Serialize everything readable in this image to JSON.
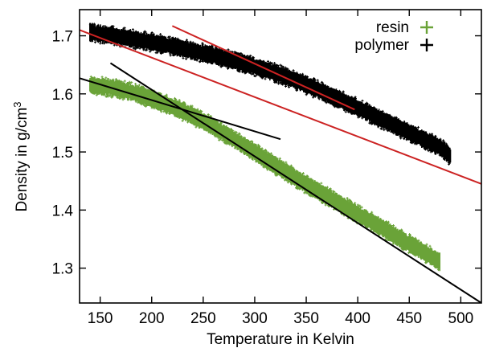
{
  "chart_data": {
    "type": "scatter",
    "title": "",
    "xlabel": "Temperature in Kelvin",
    "ylabel": "Density in g/cm",
    "ylabel_superscript": "3",
    "xlim": [
      130,
      520
    ],
    "ylim": [
      1.24,
      1.745
    ],
    "xticks": [
      150,
      200,
      250,
      300,
      350,
      400,
      450,
      500
    ],
    "yticks": [
      1.3,
      1.4,
      1.5,
      1.6,
      1.7
    ],
    "xtick_labels": [
      "150",
      "200",
      "250",
      "300",
      "350",
      "400",
      "450",
      "500"
    ],
    "ytick_labels": [
      "1.3",
      "1.4",
      "1.5",
      "1.6",
      "1.7"
    ],
    "grid": false,
    "legend_position": "top-right",
    "series": [
      {
        "name": "resin",
        "marker": "+",
        "color": "#6aa338",
        "band_thickness": 0.02,
        "x": [
          140,
          160,
          180,
          200,
          220,
          240,
          260,
          280,
          300,
          320,
          340,
          360,
          380,
          400,
          420,
          440,
          460,
          480
        ],
        "y": [
          1.615,
          1.611,
          1.603,
          1.592,
          1.578,
          1.562,
          1.543,
          1.522,
          1.499,
          1.477,
          1.455,
          1.434,
          1.414,
          1.393,
          1.373,
          1.352,
          1.332,
          1.31
        ]
      },
      {
        "name": "polymer",
        "marker": "+",
        "color": "#000000",
        "band_thickness": 0.02,
        "x": [
          140,
          160,
          180,
          200,
          220,
          240,
          260,
          280,
          300,
          320,
          340,
          360,
          380,
          400,
          420,
          440,
          460,
          480,
          490
        ],
        "y": [
          1.706,
          1.701,
          1.695,
          1.689,
          1.682,
          1.674,
          1.666,
          1.657,
          1.647,
          1.636,
          1.623,
          1.608,
          1.592,
          1.576,
          1.559,
          1.542,
          1.525,
          1.508,
          1.493
        ]
      }
    ],
    "fit_lines": [
      {
        "color": "#cc2222",
        "x": [
          130,
          520
        ],
        "y": [
          1.71,
          1.445
        ]
      },
      {
        "color": "#cc2222",
        "x": [
          220,
          397
        ],
        "y": [
          1.717,
          1.573
        ]
      },
      {
        "color": "#000000",
        "x": [
          130,
          325
        ],
        "y": [
          1.627,
          1.522
        ]
      },
      {
        "color": "#000000",
        "x": [
          160,
          520
        ],
        "y": [
          1.653,
          1.24
        ]
      }
    ]
  }
}
